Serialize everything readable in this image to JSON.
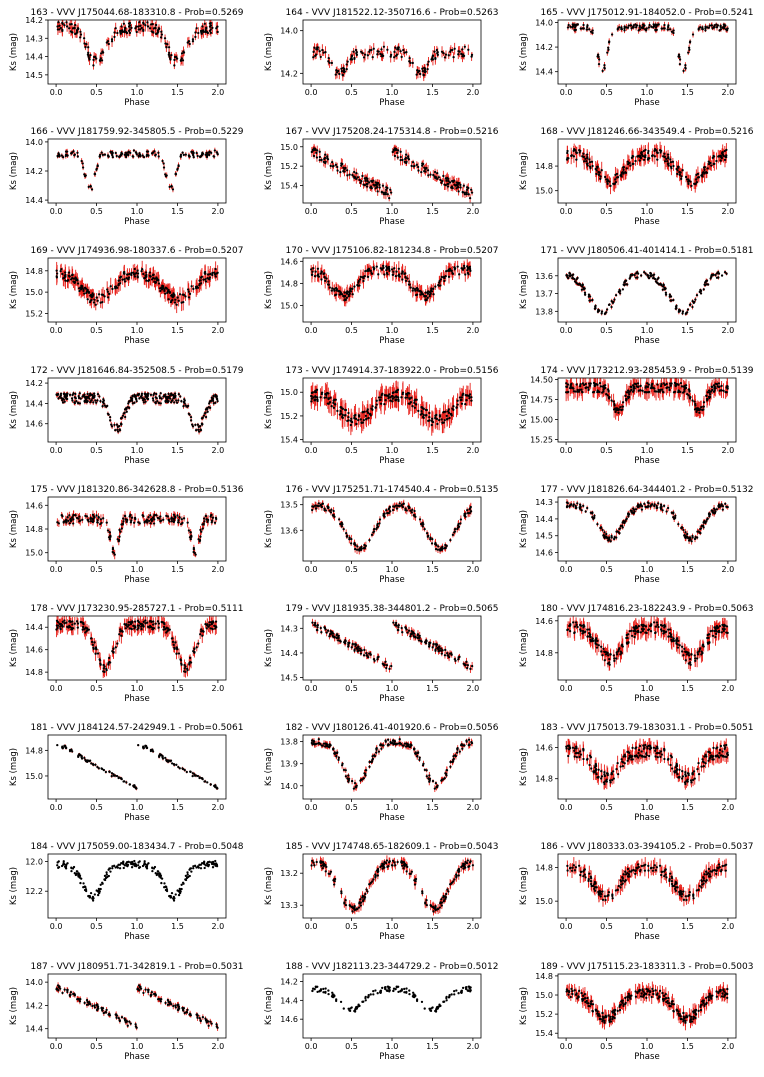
{
  "figure": {
    "xlabel": "Phase",
    "ylabel": "Ks (mag)",
    "xticks": [
      "0.0",
      "0.5",
      "1.0",
      "1.5",
      "2.0"
    ],
    "errorbar_color": "#e8201a",
    "marker_color": "#000000"
  },
  "chart_data": [
    {
      "type": "scatter",
      "title": "163 - VVV J175044.68-183310.8 - Prob=0.5269",
      "xlim": [
        0,
        2
      ],
      "ylim": [
        14.2,
        14.55
      ],
      "y_inverted": true,
      "yticks": [
        "14.2",
        "14.3",
        "14.4",
        "14.5"
      ],
      "ytick_values": [
        14.2,
        14.3,
        14.4,
        14.5
      ],
      "yticks_visible": true,
      "base": 14.24,
      "depth": 0.19,
      "dips": [
        {
          "center": 0.5,
          "width": 0.2,
          "amp": 1.0
        }
      ],
      "noise": 0.03,
      "err": 0.025,
      "n": 90,
      "shape": "eclipse"
    },
    {
      "type": "scatter",
      "title": "164 - VVV J181522.12-350716.6 - Prob=0.5263",
      "xlim": [
        0,
        2
      ],
      "ylim": [
        13.95,
        14.25
      ],
      "y_inverted": true,
      "yticks": [
        "14.0",
        "14.2"
      ],
      "ytick_values": [
        14.0,
        14.2
      ],
      "yticks_visible": true,
      "base": 14.1,
      "depth": 0.1,
      "dips": [
        {
          "center": 0.35,
          "width": 0.15,
          "amp": 1.0
        }
      ],
      "noise": 0.025,
      "err": 0.02,
      "n": 70,
      "shape": "eclipse"
    },
    {
      "type": "scatter",
      "title": "165 - VVV J175012.91-184052.0 - Prob=0.5241",
      "xlim": [
        0,
        2
      ],
      "ylim": [
        13.98,
        14.5
      ],
      "y_inverted": true,
      "yticks": [
        "14.0",
        "14.2",
        "14.4"
      ],
      "ytick_values": [
        14.0,
        14.2,
        14.4
      ],
      "yticks_visible": true,
      "base": 14.04,
      "depth": 0.36,
      "dips": [
        {
          "center": 0.45,
          "width": 0.1,
          "amp": 1.0
        }
      ],
      "noise": 0.025,
      "err": 0.02,
      "n": 80,
      "shape": "eclipse"
    },
    {
      "type": "scatter",
      "title": "166 - VVV J181759.92-345805.5 - Prob=0.5229",
      "xlim": [
        0,
        2
      ],
      "ylim": [
        13.98,
        14.42
      ],
      "y_inverted": true,
      "yticks": [
        "14.0",
        "14.2",
        "14.4"
      ],
      "ytick_values": [
        14.0,
        14.2,
        14.4
      ],
      "yticks_visible": true,
      "base": 14.08,
      "depth": 0.25,
      "dips": [
        {
          "center": 0.42,
          "width": 0.1,
          "amp": 1.0
        }
      ],
      "noise": 0.025,
      "err": 0.015,
      "n": 80,
      "shape": "eclipse"
    },
    {
      "type": "scatter",
      "title": "167 - VVV J175208.24-175314.8 - Prob=0.5216",
      "xlim": [
        0,
        2
      ],
      "ylim": [
        14.92,
        15.58
      ],
      "y_inverted": true,
      "yticks": [
        "15.0",
        "15.2",
        "15.4"
      ],
      "ytick_values": [
        15.0,
        15.2,
        15.4
      ],
      "yticks_visible": true,
      "base": 15.05,
      "depth": 0.45,
      "dips": [],
      "noise": 0.05,
      "err": 0.04,
      "n": 100,
      "shape": "ramp"
    },
    {
      "type": "scatter",
      "title": "168 - VVV J181246.66-343549.4 - Prob=0.5216",
      "xlim": [
        0,
        2
      ],
      "ylim": [
        14.58,
        15.1
      ],
      "y_inverted": true,
      "yticks": [
        "14.8",
        "15.0"
      ],
      "ytick_values": [
        14.8,
        15.0
      ],
      "yticks_visible": true,
      "base": 14.7,
      "depth": 0.22,
      "dips": [
        {
          "center": 0.55,
          "width": 0.28,
          "amp": 1.0
        }
      ],
      "noise": 0.045,
      "err": 0.05,
      "n": 110,
      "shape": "eclipse"
    },
    {
      "type": "scatter",
      "title": "169 - VVV J174936.98-180337.6 - Prob=0.5207",
      "xlim": [
        0,
        2
      ],
      "ylim": [
        14.68,
        15.28
      ],
      "y_inverted": true,
      "yticks": [
        "14.8",
        "15.0",
        "15.2"
      ],
      "ytick_values": [
        14.8,
        15.0,
        15.2
      ],
      "yticks_visible": true,
      "base": 14.82,
      "depth": 0.25,
      "dips": [
        {
          "center": 0.5,
          "width": 0.3,
          "amp": 1.0
        }
      ],
      "noise": 0.05,
      "err": 0.06,
      "n": 120,
      "shape": "eclipse"
    },
    {
      "type": "scatter",
      "title": "170 - VVV J175106.82-181234.8 - Prob=0.5207",
      "xlim": [
        0,
        2
      ],
      "ylim": [
        14.57,
        15.15
      ],
      "y_inverted": true,
      "yticks": [
        "14.6",
        "14.8",
        "15.0"
      ],
      "ytick_values": [
        14.6,
        14.8,
        15.0
      ],
      "yticks_visible": true,
      "base": 14.68,
      "depth": 0.24,
      "dips": [
        {
          "center": 0.4,
          "width": 0.25,
          "amp": 1.0
        }
      ],
      "noise": 0.04,
      "err": 0.05,
      "n": 110,
      "shape": "eclipse"
    },
    {
      "type": "scatter",
      "title": "171 - VVV J180506.41-401414.1 - Prob=0.5181",
      "xlim": [
        0,
        2
      ],
      "ylim": [
        13.5,
        13.86
      ],
      "y_inverted": true,
      "yticks": [
        "13.6",
        "13.7",
        "13.8"
      ],
      "ytick_values": [
        13.6,
        13.7,
        13.8
      ],
      "yticks_visible": true,
      "base": 13.58,
      "depth": 0.22,
      "dips": [
        {
          "center": 0.45,
          "width": 0.3,
          "amp": 1.0
        }
      ],
      "noise": 0.02,
      "err": 0.01,
      "n": 90,
      "shape": "eclipse"
    },
    {
      "type": "scatter",
      "title": "172 - VVV J181646.84-352508.5 - Prob=0.5179",
      "xlim": [
        0,
        2
      ],
      "ylim": [
        14.15,
        14.78
      ],
      "y_inverted": true,
      "yticks": [
        "14.2",
        "14.4",
        "14.6"
      ],
      "ytick_values": [
        14.2,
        14.4,
        14.6
      ],
      "yticks_visible": true,
      "base": 14.35,
      "depth": 0.3,
      "dips": [
        {
          "center": 0.75,
          "width": 0.14,
          "amp": 1.0
        }
      ],
      "noise": 0.05,
      "err": 0.02,
      "n": 140,
      "shape": "eclipse"
    },
    {
      "type": "scatter",
      "title": "173 - VVV J174914.37-183922.0 - Prob=0.5156",
      "xlim": [
        0,
        2
      ],
      "ylim": [
        14.88,
        15.42
      ],
      "y_inverted": true,
      "yticks": [
        "15.0",
        "15.2",
        "15.4"
      ],
      "ytick_values": [
        15.0,
        15.2,
        15.4
      ],
      "yticks_visible": true,
      "base": 15.02,
      "depth": 0.22,
      "dips": [
        {
          "center": 0.55,
          "width": 0.3,
          "amp": 1.0
        }
      ],
      "noise": 0.05,
      "err": 0.07,
      "n": 120,
      "shape": "eclipse"
    },
    {
      "type": "scatter",
      "title": "174 - VVV J173212.93-285453.9 - Prob=0.5139",
      "xlim": [
        0,
        2
      ],
      "ylim": [
        14.48,
        15.28
      ],
      "y_inverted": true,
      "yticks": [
        "14.50",
        "14.75",
        "15.00",
        "15.25"
      ],
      "ytick_values": [
        14.5,
        14.75,
        15.0,
        15.25
      ],
      "yticks_visible": true,
      "base": 14.6,
      "depth": 0.3,
      "dips": [
        {
          "center": 0.65,
          "width": 0.12,
          "amp": 1.0
        }
      ],
      "noise": 0.06,
      "err": 0.08,
      "n": 130,
      "shape": "eclipse"
    },
    {
      "type": "scatter",
      "title": "175 - VVV J181320.86-342628.8 - Prob=0.5136",
      "xlim": [
        0,
        2
      ],
      "ylim": [
        14.53,
        15.07
      ],
      "y_inverted": true,
      "yticks": [
        "14.6",
        "14.8",
        "15.0"
      ],
      "ytick_values": [
        14.6,
        14.8,
        15.0
      ],
      "yticks_visible": true,
      "base": 14.72,
      "depth": 0.28,
      "dips": [
        {
          "center": 0.72,
          "width": 0.08,
          "amp": 1.0
        }
      ],
      "noise": 0.04,
      "err": 0.03,
      "n": 100,
      "shape": "eclipse"
    },
    {
      "type": "scatter",
      "title": "176 - VVV J175251.71-174540.4 - Prob=0.5135",
      "xlim": [
        0,
        2
      ],
      "ylim": [
        13.47,
        13.72
      ],
      "y_inverted": true,
      "yticks": [
        "13.5",
        "13.6"
      ],
      "ytick_values": [
        13.5,
        13.6
      ],
      "yticks_visible": true,
      "base": 13.5,
      "depth": 0.17,
      "dips": [
        {
          "center": 0.6,
          "width": 0.3,
          "amp": 1.0
        }
      ],
      "noise": 0.012,
      "err": 0.012,
      "n": 90,
      "shape": "eclipse"
    },
    {
      "type": "scatter",
      "title": "177 - VVV J181826.64-344401.2 - Prob=0.5132",
      "xlim": [
        0,
        2
      ],
      "ylim": [
        14.27,
        14.65
      ],
      "y_inverted": true,
      "yticks": [
        "14.3",
        "14.4",
        "14.5",
        "14.6"
      ],
      "ytick_values": [
        14.3,
        14.4,
        14.5,
        14.6
      ],
      "yticks_visible": true,
      "base": 14.32,
      "depth": 0.2,
      "dips": [
        {
          "center": 0.55,
          "width": 0.24,
          "amp": 1.0
        }
      ],
      "noise": 0.02,
      "err": 0.015,
      "n": 100,
      "shape": "eclipse"
    },
    {
      "type": "scatter",
      "title": "178 - VVV J173230.95-285727.1 - Prob=0.5111",
      "xlim": [
        0,
        2
      ],
      "ylim": [
        14.3,
        14.87
      ],
      "y_inverted": true,
      "yticks": [
        "14.4",
        "14.6",
        "14.8"
      ],
      "ytick_values": [
        14.4,
        14.6,
        14.8
      ],
      "yticks_visible": true,
      "base": 14.38,
      "depth": 0.38,
      "dips": [
        {
          "center": 0.6,
          "width": 0.18,
          "amp": 1.0
        }
      ],
      "noise": 0.04,
      "err": 0.05,
      "n": 110,
      "shape": "eclipse"
    },
    {
      "type": "scatter",
      "title": "179 - VVV J181935.38-344801.2 - Prob=0.5065",
      "xlim": [
        0,
        2
      ],
      "ylim": [
        14.25,
        14.51
      ],
      "y_inverted": true,
      "yticks": [
        "14.3",
        "14.4",
        "14.5"
      ],
      "ytick_values": [
        14.3,
        14.4,
        14.5
      ],
      "yticks_visible": true,
      "base": 14.28,
      "depth": 0.18,
      "dips": [],
      "noise": 0.015,
      "err": 0.012,
      "n": 90,
      "shape": "ramp"
    },
    {
      "type": "scatter",
      "title": "180 - VVV J174816.23-182243.9 - Prob=0.5063",
      "xlim": [
        0,
        2
      ],
      "ylim": [
        14.57,
        14.97
      ],
      "y_inverted": true,
      "yticks": [
        "14.6",
        "14.8"
      ],
      "ytick_values": [
        14.6,
        14.8
      ],
      "yticks_visible": true,
      "base": 14.64,
      "depth": 0.2,
      "dips": [
        {
          "center": 0.55,
          "width": 0.25,
          "amp": 1.0
        }
      ],
      "noise": 0.035,
      "err": 0.04,
      "n": 120,
      "shape": "eclipse"
    },
    {
      "type": "scatter",
      "title": "181 - VVV J184124.57-242949.1 - Prob=0.5061",
      "xlim": [
        0,
        2
      ],
      "ylim": [
        14.68,
        15.18
      ],
      "y_inverted": true,
      "yticks": [
        "14.8",
        "15.0"
      ],
      "ytick_values": [
        14.8,
        15.0
      ],
      "yticks_visible": true,
      "base": 14.74,
      "depth": 0.36,
      "dips": [],
      "noise": 0.015,
      "err": 0.01,
      "n": 70,
      "shape": "ramp"
    },
    {
      "type": "scatter",
      "title": "182 - VVV J180126.41-401920.6 - Prob=0.5056",
      "xlim": [
        0,
        2
      ],
      "ylim": [
        13.77,
        14.06
      ],
      "y_inverted": true,
      "yticks": [
        "13.8",
        "13.9",
        "14.0"
      ],
      "ytick_values": [
        13.8,
        13.9,
        14.0
      ],
      "yticks_visible": true,
      "base": 13.8,
      "depth": 0.2,
      "dips": [
        {
          "center": 0.55,
          "width": 0.25,
          "amp": 1.0
        }
      ],
      "noise": 0.015,
      "err": 0.012,
      "n": 100,
      "shape": "eclipse"
    },
    {
      "type": "scatter",
      "title": "183 - VVV J175013.79-183031.1 - Prob=0.5051",
      "xlim": [
        0,
        2
      ],
      "ylim": [
        14.52,
        14.93
      ],
      "y_inverted": true,
      "yticks": [
        "14.6",
        "14.8"
      ],
      "ytick_values": [
        14.6,
        14.8
      ],
      "yticks_visible": true,
      "base": 14.62,
      "depth": 0.18,
      "dips": [
        {
          "center": 0.5,
          "width": 0.25,
          "amp": 1.0
        }
      ],
      "noise": 0.04,
      "err": 0.035,
      "n": 120,
      "shape": "eclipse"
    },
    {
      "type": "scatter",
      "title": "184 - VVV J175059.00-183434.7 - Prob=0.5048",
      "xlim": [
        0,
        2
      ],
      "ylim": [
        11.95,
        12.38
      ],
      "y_inverted": true,
      "yticks": [
        "12.0",
        "12.2"
      ],
      "ytick_values": [
        12.0,
        12.2
      ],
      "yticks_visible": true,
      "base": 12.02,
      "depth": 0.22,
      "dips": [
        {
          "center": 0.45,
          "width": 0.2,
          "amp": 1.0
        }
      ],
      "noise": 0.025,
      "err": 0.0,
      "n": 120,
      "shape": "eclipse"
    },
    {
      "type": "scatter",
      "title": "185 - VVV J174748.65-182609.1 - Prob=0.5043",
      "xlim": [
        0,
        2
      ],
      "ylim": [
        13.14,
        13.34
      ],
      "y_inverted": true,
      "yticks": [
        "13.2",
        "13.3"
      ],
      "ytick_values": [
        13.2,
        13.3
      ],
      "yticks_visible": true,
      "base": 13.16,
      "depth": 0.15,
      "dips": [
        {
          "center": 0.52,
          "width": 0.3,
          "amp": 1.0
        }
      ],
      "noise": 0.012,
      "err": 0.012,
      "n": 100,
      "shape": "eclipse"
    },
    {
      "type": "scatter",
      "title": "186 - VVV J180333.03-394105.2 - Prob=0.5037",
      "xlim": [
        0,
        2
      ],
      "ylim": [
        14.72,
        15.1
      ],
      "y_inverted": true,
      "yticks": [
        "14.8",
        "15.0"
      ],
      "ytick_values": [
        14.8,
        15.0
      ],
      "yticks_visible": true,
      "base": 14.8,
      "depth": 0.18,
      "dips": [
        {
          "center": 0.5,
          "width": 0.25,
          "amp": 1.0
        }
      ],
      "noise": 0.03,
      "err": 0.035,
      "n": 100,
      "shape": "eclipse"
    },
    {
      "type": "scatter",
      "title": "187 - VVV J180951.71-342819.1 - Prob=0.5031",
      "xlim": [
        0,
        2
      ],
      "ylim": [
        13.93,
        14.48
      ],
      "y_inverted": true,
      "yticks": [
        "14.0",
        "14.2",
        "14.4"
      ],
      "ytick_values": [
        14.0,
        14.2,
        14.4
      ],
      "yticks_visible": true,
      "base": 14.04,
      "depth": 0.35,
      "dips": [],
      "noise": 0.025,
      "err": 0.02,
      "n": 80,
      "shape": "ramp"
    },
    {
      "type": "scatter",
      "title": "188 - VVV J182113.23-344729.2 - Prob=0.5012",
      "xlim": [
        0,
        2
      ],
      "ylim": [
        14.12,
        14.8
      ],
      "y_inverted": true,
      "yticks": [
        "14.2",
        "14.4",
        "14.6"
      ],
      "ytick_values": [
        14.2,
        14.4,
        14.6
      ],
      "yticks_visible": true,
      "base": 14.28,
      "depth": 0.22,
      "dips": [
        {
          "center": 0.5,
          "width": 0.25,
          "amp": 1.0
        }
      ],
      "noise": 0.03,
      "err": 0.0,
      "n": 80,
      "shape": "eclipse"
    },
    {
      "type": "scatter",
      "title": "189 - VVV J175115.23-183311.3 - Prob=0.5003",
      "xlim": [
        0,
        2
      ],
      "ylim": [
        14.78,
        15.45
      ],
      "y_inverted": true,
      "yticks": [
        "14.8",
        "15.0",
        "15.2",
        "15.4"
      ],
      "ytick_values": [
        14.8,
        15.0,
        15.2,
        15.4
      ],
      "yticks_visible": true,
      "base": 14.98,
      "depth": 0.27,
      "dips": [
        {
          "center": 0.5,
          "width": 0.25,
          "amp": 1.0
        }
      ],
      "noise": 0.05,
      "err": 0.06,
      "n": 130,
      "shape": "eclipse"
    }
  ]
}
